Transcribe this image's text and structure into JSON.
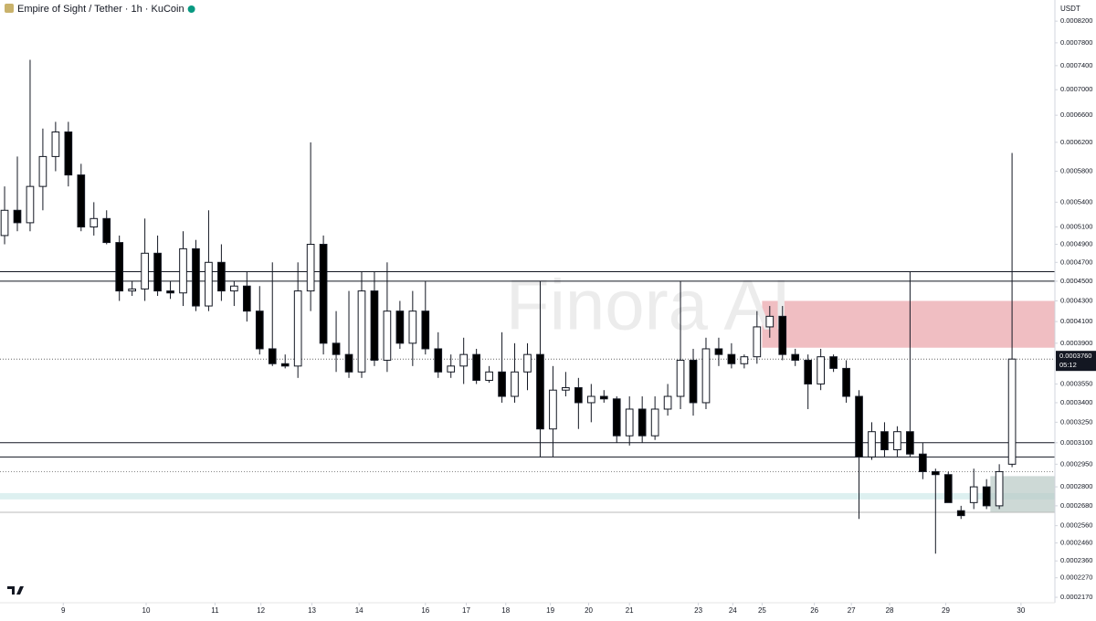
{
  "chart_data": {
    "type": "candlestick",
    "title": "Empire of Sight / Tether · 1h · KuCoin",
    "currency": "USDT",
    "watermark": "Finora AI",
    "log_scale": true,
    "up_color": "#ffffff",
    "down_color": "#000000",
    "open": [
      0.0005,
      0.00053,
      0.000515,
      0.00056,
      0.0006,
      0.000635,
      0.000575,
      0.00051,
      0.00052,
      0.000492,
      0.00044,
      0.000442,
      0.00048,
      0.00044,
      0.000438,
      0.000485,
      0.000425,
      0.00047,
      0.00044,
      0.000445,
      0.00042,
      0.000385,
      0.000372,
      0.00037,
      0.00044,
      0.00049,
      0.00039,
      0.00038,
      0.000365,
      0.00044,
      0.000375,
      0.00042,
      0.00039,
      0.00042,
      0.000385,
      0.000365,
      0.00037,
      0.00038,
      0.000358,
      0.000365,
      0.000345,
      0.000365,
      0.00038,
      0.00032,
      0.00035,
      0.000352,
      0.00034,
      0.000345,
      0.000343,
      0.000315,
      0.000335,
      0.000315,
      0.000335,
      0.000345,
      0.000375,
      0.00034,
      0.000385,
      0.00038,
      0.000372,
      0.000378,
      0.000405,
      0.000415,
      0.00038,
      0.000375,
      0.000355,
      0.000378,
      0.000368,
      0.000345,
      0.0003,
      0.000318,
      0.000305,
      0.000318,
      0.000302,
      0.00029,
      0.000288,
      0.000265,
      0.00027,
      0.00028,
      0.000268,
      0.000295
    ],
    "high": [
      0.00056,
      0.0006,
      0.00075,
      0.00064,
      0.00065,
      0.00065,
      0.00059,
      0.00054,
      0.00053,
      0.0005,
      0.00045,
      0.00052,
      0.0005,
      0.00045,
      0.000505,
      0.000495,
      0.00053,
      0.00049,
      0.00045,
      0.00046,
      0.000445,
      0.00047,
      0.00038,
      0.00047,
      0.00062,
      0.0005,
      0.00042,
      0.00044,
      0.00046,
      0.00046,
      0.00047,
      0.00043,
      0.00044,
      0.00045,
      0.0004,
      0.00038,
      0.000395,
      0.000385,
      0.00037,
      0.0004,
      0.00039,
      0.00039,
      0.00045,
      0.00037,
      0.000365,
      0.00036,
      0.000355,
      0.00035,
      0.000345,
      0.000345,
      0.000345,
      0.000345,
      0.000355,
      0.00045,
      0.000385,
      0.000395,
      0.000395,
      0.00039,
      0.00038,
      0.00042,
      0.000425,
      0.000425,
      0.000385,
      0.00038,
      0.000385,
      0.00038,
      0.000375,
      0.00035,
      0.000325,
      0.000325,
      0.000322,
      0.00046,
      0.00031,
      0.000292,
      0.00029,
      0.000268,
      0.000292,
      0.000285,
      0.000295,
      0.000605
    ],
    "low": [
      0.00049,
      0.000505,
      0.000505,
      0.00053,
      0.00058,
      0.00056,
      0.000505,
      0.0005,
      0.00049,
      0.00043,
      0.000435,
      0.00043,
      0.000435,
      0.000432,
      0.000425,
      0.00042,
      0.00042,
      0.00043,
      0.000425,
      0.00041,
      0.00038,
      0.00037,
      0.000368,
      0.00036,
      0.00042,
      0.00038,
      0.000365,
      0.00036,
      0.00036,
      0.00037,
      0.000365,
      0.000385,
      0.00037,
      0.00038,
      0.00036,
      0.00036,
      0.000355,
      0.000355,
      0.000356,
      0.00034,
      0.00034,
      0.00035,
      0.0003,
      0.0003,
      0.000345,
      0.00032,
      0.000325,
      0.00034,
      0.00031,
      0.000308,
      0.00031,
      0.000312,
      0.00033,
      0.000335,
      0.00033,
      0.000335,
      0.00037,
      0.000368,
      0.000368,
      0.000372,
      0.000395,
      0.000375,
      0.00037,
      0.000335,
      0.00035,
      0.000365,
      0.00034,
      0.00026,
      0.000298,
      0.0003,
      0.0003,
      0.0003,
      0.000285,
      0.00024,
      0.00027,
      0.00026,
      0.000266,
      0.000266,
      0.000266,
      0.000293
    ],
    "close": [
      0.00053,
      0.000515,
      0.00056,
      0.0006,
      0.000635,
      0.000575,
      0.00051,
      0.00052,
      0.000492,
      0.00044,
      0.000442,
      0.00048,
      0.00044,
      0.000438,
      0.000485,
      0.000425,
      0.00047,
      0.00044,
      0.000445,
      0.00042,
      0.000385,
      0.000372,
      0.00037,
      0.00044,
      0.00049,
      0.00039,
      0.00038,
      0.000365,
      0.00044,
      0.000375,
      0.00042,
      0.00039,
      0.00042,
      0.000385,
      0.000365,
      0.00037,
      0.00038,
      0.000358,
      0.000365,
      0.000345,
      0.000365,
      0.00038,
      0.00032,
      0.00035,
      0.000352,
      0.00034,
      0.000345,
      0.000343,
      0.000315,
      0.000335,
      0.000315,
      0.000335,
      0.000345,
      0.000375,
      0.00034,
      0.000385,
      0.00038,
      0.000372,
      0.000378,
      0.000405,
      0.000415,
      0.00038,
      0.000375,
      0.000355,
      0.000378,
      0.000368,
      0.000345,
      0.0003,
      0.000318,
      0.000305,
      0.000318,
      0.000302,
      0.00029,
      0.000288,
      0.00027,
      0.000262,
      0.00028,
      0.000268,
      0.00029,
      0.000376
    ],
    "xlim": [
      -0.36,
      82.36
    ],
    "ylim": [
      0.0002143,
      0.000861
    ],
    "xticks": [
      {
        "value": 4.6,
        "label": "9"
      },
      {
        "value": 11.1,
        "label": "10"
      },
      {
        "value": 16.5,
        "label": "11"
      },
      {
        "value": 20.1,
        "label": "12"
      },
      {
        "value": 24.1,
        "label": "13"
      },
      {
        "value": 27.8,
        "label": "14"
      },
      {
        "value": 33,
        "label": "16"
      },
      {
        "value": 36.2,
        "label": "17"
      },
      {
        "value": 39.3,
        "label": "18"
      },
      {
        "value": 42.8,
        "label": "19"
      },
      {
        "value": 45.8,
        "label": "20"
      },
      {
        "value": 49,
        "label": "21"
      },
      {
        "value": 54.4,
        "label": "23"
      },
      {
        "value": 57.1,
        "label": "24"
      },
      {
        "value": 59.4,
        "label": "25"
      },
      {
        "value": 63.5,
        "label": "26"
      },
      {
        "value": 66.4,
        "label": "27"
      },
      {
        "value": 69.4,
        "label": "28"
      },
      {
        "value": 73.8,
        "label": "29"
      },
      {
        "value": 79.7,
        "label": "30"
      }
    ],
    "yticks": [
      {
        "value": 0.00082,
        "label": "0.0008200"
      },
      {
        "value": 0.00078,
        "label": "0.0007800"
      },
      {
        "value": 0.00074,
        "label": "0.0007400"
      },
      {
        "value": 0.0007,
        "label": "0.0007000"
      },
      {
        "value": 0.00066,
        "label": "0.0006600"
      },
      {
        "value": 0.00062,
        "label": "0.0006200"
      },
      {
        "value": 0.00058,
        "label": "0.0005800"
      },
      {
        "value": 0.00054,
        "label": "0.0005400"
      },
      {
        "value": 0.00051,
        "label": "0.0005100"
      },
      {
        "value": 0.00049,
        "label": "0.0004900"
      },
      {
        "value": 0.00047,
        "label": "0.0004700"
      },
      {
        "value": 0.00045,
        "label": "0.0004500"
      },
      {
        "value": 0.00043,
        "label": "0.0004300"
      },
      {
        "value": 0.00041,
        "label": "0.0004100"
      },
      {
        "value": 0.00039,
        "label": "0.0003900"
      },
      {
        "value": 0.000355,
        "label": "0.0003550"
      },
      {
        "value": 0.00034,
        "label": "0.0003400"
      },
      {
        "value": 0.000325,
        "label": "0.0003250"
      },
      {
        "value": 0.00031,
        "label": "0.0003100"
      },
      {
        "value": 0.000295,
        "label": "0.0002950"
      },
      {
        "value": 0.00028,
        "label": "0.0002800"
      },
      {
        "value": 0.000268,
        "label": "0.0002680"
      },
      {
        "value": 0.000256,
        "label": "0.0002560"
      },
      {
        "value": 0.000246,
        "label": "0.0002460"
      },
      {
        "value": 0.000236,
        "label": "0.0002360"
      },
      {
        "value": 0.000227,
        "label": "0.0002270"
      },
      {
        "value": 0.000217,
        "label": "0.0002170"
      }
    ],
    "last_price": {
      "value": 0.000376,
      "label": "0.0003760"
    },
    "countdown": "05:12",
    "lines": [
      {
        "value": 0.00046,
        "style": "solid"
      },
      {
        "value": 0.00045,
        "style": "solid"
      },
      {
        "value": 0.00031,
        "style": "solid"
      },
      {
        "value": 0.0003,
        "style": "solid"
      },
      {
        "value": 0.00029,
        "style": "dotted"
      },
      {
        "value": 0.000264,
        "style": "thin"
      }
    ],
    "zones": [
      {
        "low": 0.000386,
        "high": 0.00043,
        "from": 59.4,
        "color": "#eaa2a8"
      },
      {
        "low": 0.000272,
        "high": 0.000276,
        "from": -0.36,
        "color": "#cfe9ea"
      },
      {
        "low": 0.000264,
        "high": 0.000287,
        "from": 77.3,
        "color": "#b8c9c4"
      }
    ]
  }
}
